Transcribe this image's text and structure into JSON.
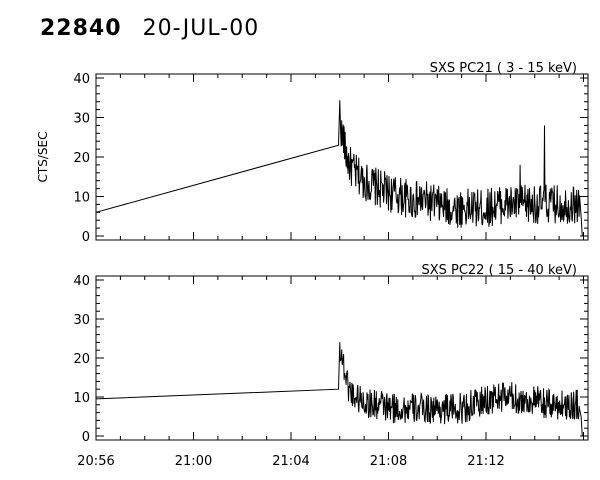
{
  "header": {
    "id": "22840",
    "date": "20-JUL-00"
  },
  "chart_data": [
    {
      "type": "line",
      "title": "SXS PC21  (  3 - 15 keV)",
      "ylabel": "CTS/SEC",
      "xlabel": "",
      "ylim": [
        0,
        40
      ],
      "yticks": [
        "0",
        "10",
        "20",
        "30",
        "40"
      ],
      "xlim_minutes": [
        0,
        20.3
      ],
      "xtick_labels": [
        "20:56",
        "21:00",
        "21:04",
        "21:08",
        "21:12"
      ],
      "series": [
        {
          "x_minutes": [
            0,
            9.95,
            10.0,
            10.05,
            10.1,
            10.15,
            10.2,
            10.3,
            10.4,
            10.5,
            10.6,
            10.8,
            11.0,
            11.3,
            11.6,
            12.0,
            12.5,
            13.0,
            13.5,
            14.0,
            14.5,
            15.0,
            15.5,
            16.0,
            16.5,
            17.0,
            17.5,
            18.0,
            18.5,
            19.0,
            19.2,
            19.5,
            19.8,
            19.9,
            19.95
          ],
          "values": [
            6,
            23,
            32,
            28,
            24,
            26,
            22,
            20,
            18,
            17,
            16,
            15,
            14,
            13,
            12,
            11,
            10,
            9,
            9,
            8,
            7,
            7,
            7,
            7,
            8,
            8,
            8,
            8,
            8,
            8,
            8,
            8,
            8,
            5,
            0
          ],
          "noise_start_minutes": 10.0,
          "noise_amplitude": 5,
          "spikes": [
            {
              "x_minutes": 18.4,
              "value": 28
            },
            {
              "x_minutes": 17.4,
              "value": 18
            }
          ]
        }
      ]
    },
    {
      "type": "line",
      "title": "SXS PC22  ( 15 - 40 keV)",
      "ylabel": "",
      "xlabel": "",
      "ylim": [
        0,
        40
      ],
      "yticks": [
        "0",
        "10",
        "20",
        "30",
        "40"
      ],
      "xlim_minutes": [
        0,
        20.3
      ],
      "xtick_labels": [
        "20:56",
        "21:00",
        "21:04",
        "21:08",
        "21:12"
      ],
      "series": [
        {
          "x_minutes": [
            0,
            9.95,
            10.0,
            10.05,
            10.1,
            10.2,
            10.3,
            10.4,
            10.5,
            10.7,
            11.0,
            11.3,
            11.7,
            12.0,
            12.5,
            13.0,
            13.5,
            14.0,
            14.5,
            15.0,
            15.5,
            16.0,
            16.5,
            17.0,
            17.5,
            18.0,
            18.5,
            19.0,
            19.5,
            19.8,
            19.9,
            19.95
          ],
          "values": [
            9.5,
            12,
            23,
            22,
            20,
            17,
            14,
            12,
            11,
            10,
            9,
            8,
            8,
            7,
            7,
            7,
            7,
            7,
            7,
            7,
            8,
            9,
            10,
            10,
            9,
            9,
            8,
            8,
            8,
            8,
            5,
            0
          ],
          "noise_start_minutes": 10.0,
          "noise_amplitude": 4,
          "spikes": []
        }
      ]
    }
  ]
}
